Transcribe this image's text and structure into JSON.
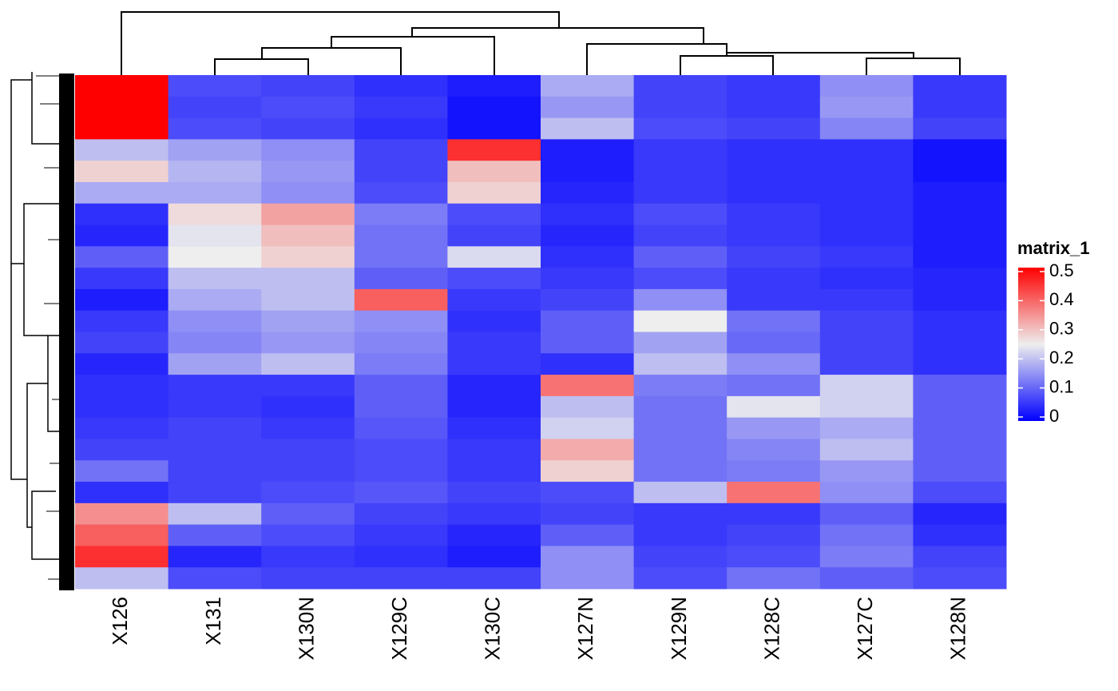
{
  "chart_data": {
    "type": "heatmap",
    "columns": [
      "X126",
      "X131",
      "X130N",
      "X129C",
      "X130C",
      "X127N",
      "X129N",
      "X128C",
      "X127C",
      "X128N"
    ],
    "values": [
      [
        0.55,
        0.08,
        0.07,
        0.05,
        0.03,
        0.18,
        0.07,
        0.06,
        0.15,
        0.06
      ],
      [
        0.55,
        0.07,
        0.08,
        0.06,
        0.02,
        0.16,
        0.07,
        0.06,
        0.16,
        0.06
      ],
      [
        0.55,
        0.08,
        0.07,
        0.05,
        0.02,
        0.2,
        0.08,
        0.07,
        0.14,
        0.07
      ],
      [
        0.2,
        0.17,
        0.15,
        0.07,
        0.45,
        0.03,
        0.06,
        0.05,
        0.05,
        0.02
      ],
      [
        0.28,
        0.19,
        0.16,
        0.07,
        0.3,
        0.03,
        0.06,
        0.05,
        0.05,
        0.02
      ],
      [
        0.18,
        0.18,
        0.15,
        0.08,
        0.28,
        0.04,
        0.06,
        0.05,
        0.05,
        0.03
      ],
      [
        0.05,
        0.27,
        0.33,
        0.13,
        0.08,
        0.05,
        0.08,
        0.06,
        0.05,
        0.03
      ],
      [
        0.04,
        0.24,
        0.3,
        0.12,
        0.07,
        0.04,
        0.07,
        0.06,
        0.05,
        0.03
      ],
      [
        0.1,
        0.25,
        0.28,
        0.12,
        0.23,
        0.05,
        0.1,
        0.07,
        0.06,
        0.03
      ],
      [
        0.06,
        0.2,
        0.2,
        0.1,
        0.08,
        0.06,
        0.08,
        0.06,
        0.05,
        0.04
      ],
      [
        0.03,
        0.18,
        0.2,
        0.4,
        0.06,
        0.07,
        0.15,
        0.06,
        0.06,
        0.04
      ],
      [
        0.06,
        0.15,
        0.17,
        0.15,
        0.05,
        0.1,
        0.25,
        0.12,
        0.07,
        0.05
      ],
      [
        0.07,
        0.14,
        0.16,
        0.14,
        0.06,
        0.1,
        0.17,
        0.11,
        0.07,
        0.05
      ],
      [
        0.04,
        0.17,
        0.2,
        0.13,
        0.06,
        0.05,
        0.2,
        0.15,
        0.07,
        0.05
      ],
      [
        0.05,
        0.06,
        0.06,
        0.1,
        0.04,
        0.38,
        0.13,
        0.12,
        0.22,
        0.1
      ],
      [
        0.05,
        0.06,
        0.05,
        0.1,
        0.04,
        0.2,
        0.12,
        0.24,
        0.22,
        0.1
      ],
      [
        0.06,
        0.07,
        0.06,
        0.09,
        0.05,
        0.22,
        0.12,
        0.16,
        0.18,
        0.1
      ],
      [
        0.07,
        0.07,
        0.07,
        0.08,
        0.06,
        0.32,
        0.12,
        0.14,
        0.2,
        0.1
      ],
      [
        0.12,
        0.07,
        0.07,
        0.08,
        0.06,
        0.28,
        0.12,
        0.13,
        0.16,
        0.1
      ],
      [
        0.05,
        0.07,
        0.08,
        0.09,
        0.07,
        0.08,
        0.2,
        0.38,
        0.15,
        0.08
      ],
      [
        0.35,
        0.2,
        0.1,
        0.07,
        0.06,
        0.07,
        0.06,
        0.06,
        0.1,
        0.04
      ],
      [
        0.4,
        0.1,
        0.08,
        0.06,
        0.04,
        0.1,
        0.06,
        0.07,
        0.12,
        0.05
      ],
      [
        0.45,
        0.04,
        0.06,
        0.05,
        0.03,
        0.15,
        0.07,
        0.08,
        0.13,
        0.07
      ],
      [
        0.2,
        0.08,
        0.07,
        0.07,
        0.07,
        0.15,
        0.08,
        0.12,
        0.1,
        0.08
      ]
    ],
    "legend_title": "matrix_1",
    "color_stops": [
      {
        "value": 0,
        "color": "#0000ff"
      },
      {
        "value": 0.25,
        "color": "#eeeeee"
      },
      {
        "value": 0.5,
        "color": "#ff0000"
      }
    ],
    "clim": [
      0,
      0.5
    ],
    "cticks": [
      0,
      0.1,
      0.2,
      0.3,
      0.4,
      0.5
    ]
  }
}
